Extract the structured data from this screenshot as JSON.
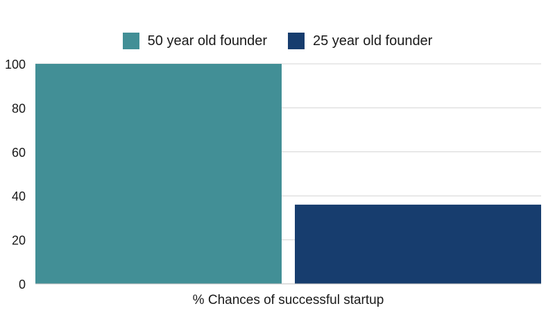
{
  "chart_data": {
    "type": "bar",
    "title": "",
    "xlabel": "% Chances of successful startup",
    "ylabel": "",
    "ylim": [
      0,
      100
    ],
    "yticks": [
      0,
      20,
      40,
      60,
      80,
      100
    ],
    "grid": true,
    "legend_position": "top-center",
    "categories": [
      "% Chances of successful startup"
    ],
    "series": [
      {
        "name": "50 year old founder",
        "values": [
          100
        ],
        "color": "#428f96"
      },
      {
        "name": "25 year old founder",
        "values": [
          36
        ],
        "color": "#173d6e"
      }
    ]
  }
}
